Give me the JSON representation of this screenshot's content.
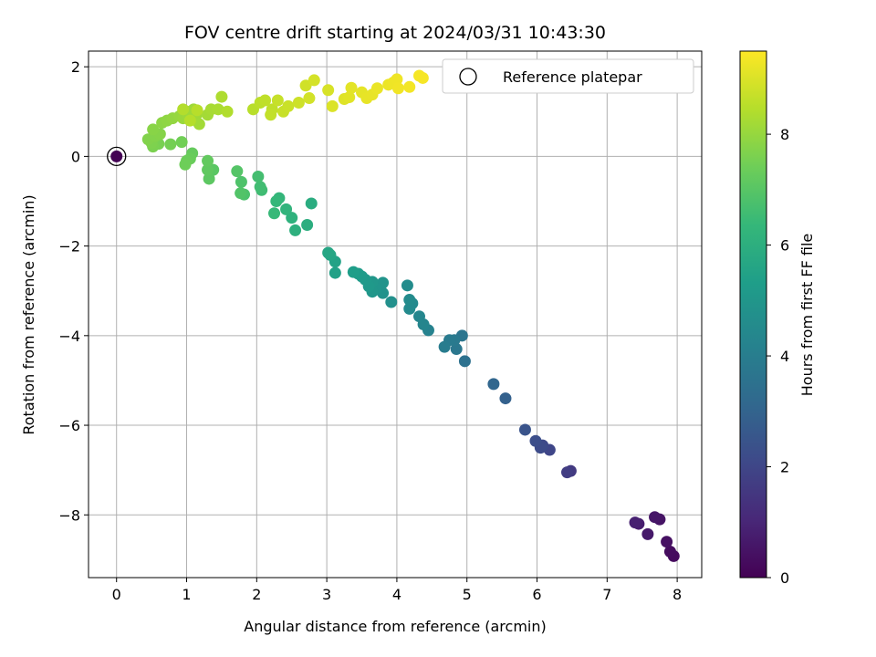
{
  "chart_data": {
    "type": "scatter",
    "title": "FOV centre drift starting at 2024/03/31 10:43:30",
    "xlabel": "Angular distance from reference (arcmin)",
    "ylabel": "Rotation from reference (arcmin)",
    "xlim": [
      -0.4,
      8.35
    ],
    "ylim": [
      -9.4,
      2.35
    ],
    "xticks": [
      0,
      1,
      2,
      3,
      4,
      5,
      6,
      7,
      8
    ],
    "yticks": [
      -8,
      -6,
      -4,
      -2,
      0,
      2
    ],
    "grid": true,
    "legend": {
      "position": "top-right",
      "entries": [
        "Reference platepar"
      ]
    },
    "colorbar": {
      "label": "Hours from first FF file",
      "range": [
        0,
        9.5
      ],
      "ticks": [
        0,
        2,
        4,
        6,
        8
      ],
      "colormap": "viridis"
    },
    "reference_point": {
      "x": 0,
      "y": 0
    },
    "points": [
      [
        0,
        0,
        0
      ],
      [
        7.95,
        -8.92,
        0.25
      ],
      [
        7.9,
        -8.82,
        0.3
      ],
      [
        7.85,
        -8.6,
        0.4
      ],
      [
        7.75,
        -8.1,
        0.5
      ],
      [
        7.68,
        -8.05,
        0.55
      ],
      [
        7.58,
        -8.43,
        0.65
      ],
      [
        7.45,
        -8.2,
        0.75
      ],
      [
        7.4,
        -8.17,
        0.85
      ],
      [
        6.48,
        -7.02,
        1.6
      ],
      [
        6.43,
        -7.05,
        1.7
      ],
      [
        6.18,
        -6.55,
        2.0
      ],
      [
        6.08,
        -6.45,
        2.1
      ],
      [
        6.05,
        -6.5,
        2.15
      ],
      [
        5.98,
        -6.35,
        2.25
      ],
      [
        5.83,
        -6.1,
        2.45
      ],
      [
        5.55,
        -5.4,
        2.9
      ],
      [
        5.38,
        -5.08,
        3.1
      ],
      [
        4.97,
        -4.57,
        3.5
      ],
      [
        4.93,
        -4.0,
        3.65
      ],
      [
        4.85,
        -4.3,
        3.75
      ],
      [
        4.82,
        -4.1,
        3.8
      ],
      [
        4.75,
        -4.1,
        3.85
      ],
      [
        4.68,
        -4.25,
        3.95
      ],
      [
        4.45,
        -3.88,
        4.2
      ],
      [
        4.38,
        -3.75,
        4.3
      ],
      [
        4.32,
        -3.57,
        4.35
      ],
      [
        4.22,
        -3.28,
        4.45
      ],
      [
        4.18,
        -3.4,
        4.5
      ],
      [
        4.18,
        -3.2,
        4.55
      ],
      [
        4.15,
        -2.88,
        4.6
      ],
      [
        3.92,
        -3.25,
        4.75
      ],
      [
        3.8,
        -3.05,
        4.85
      ],
      [
        3.8,
        -2.82,
        4.9
      ],
      [
        3.7,
        -2.95,
        4.95
      ],
      [
        3.65,
        -3.02,
        5.0
      ],
      [
        3.65,
        -2.8,
        5.05
      ],
      [
        3.6,
        -2.9,
        5.1
      ],
      [
        3.55,
        -2.75,
        5.15
      ],
      [
        3.5,
        -2.68,
        5.2
      ],
      [
        3.45,
        -2.62,
        5.25
      ],
      [
        3.38,
        -2.58,
        5.3
      ],
      [
        3.12,
        -2.6,
        5.45
      ],
      [
        3.12,
        -2.35,
        5.5
      ],
      [
        3.05,
        -2.2,
        5.6
      ],
      [
        3.02,
        -2.15,
        5.65
      ],
      [
        2.78,
        -1.05,
        5.9
      ],
      [
        2.72,
        -1.53,
        5.95
      ],
      [
        2.55,
        -1.65,
        6.05
      ],
      [
        2.5,
        -1.37,
        6.1
      ],
      [
        2.42,
        -1.18,
        6.2
      ],
      [
        2.32,
        -0.93,
        6.3
      ],
      [
        2.28,
        -1.0,
        6.35
      ],
      [
        2.25,
        -1.27,
        6.4
      ],
      [
        2.07,
        -0.75,
        6.55
      ],
      [
        2.05,
        -0.68,
        6.6
      ],
      [
        2.02,
        -0.45,
        6.65
      ],
      [
        1.82,
        -0.85,
        6.8
      ],
      [
        1.78,
        -0.57,
        6.85
      ],
      [
        1.77,
        -0.82,
        6.9
      ],
      [
        1.72,
        -0.33,
        6.95
      ],
      [
        1.38,
        -0.3,
        7.05
      ],
      [
        1.32,
        -0.5,
        7.1
      ],
      [
        1.3,
        -0.3,
        7.15
      ],
      [
        1.3,
        -0.1,
        7.2
      ],
      [
        1.08,
        0.07,
        7.25
      ],
      [
        1.05,
        -0.05,
        7.3
      ],
      [
        1.0,
        -0.1,
        7.35
      ],
      [
        0.98,
        -0.18,
        7.4
      ],
      [
        0.93,
        0.32,
        7.45
      ],
      [
        0.77,
        0.27,
        7.5
      ],
      [
        0.6,
        0.28,
        7.55
      ],
      [
        0.52,
        0.22,
        7.6
      ],
      [
        0.5,
        0.3,
        7.65
      ],
      [
        0.45,
        0.38,
        7.7
      ],
      [
        0.55,
        0.45,
        7.72
      ],
      [
        0.62,
        0.5,
        7.75
      ],
      [
        0.52,
        0.6,
        7.8
      ],
      [
        0.65,
        0.75,
        7.85
      ],
      [
        0.72,
        0.8,
        7.9
      ],
      [
        0.8,
        0.85,
        7.95
      ],
      [
        0.9,
        0.9,
        8.0
      ],
      [
        0.95,
        0.85,
        8.05
      ],
      [
        1.02,
        0.9,
        8.08
      ],
      [
        1.05,
        1.0,
        8.1
      ],
      [
        1.1,
        1.05,
        8.12
      ],
      [
        1.15,
        0.95,
        8.15
      ],
      [
        1.18,
        0.72,
        8.18
      ],
      [
        1.3,
        0.93,
        8.2
      ],
      [
        1.35,
        1.05,
        8.25
      ],
      [
        1.45,
        1.05,
        8.3
      ],
      [
        1.5,
        1.33,
        8.35
      ],
      [
        1.58,
        1.0,
        8.4
      ],
      [
        0.95,
        1.05,
        8.42
      ],
      [
        1.05,
        0.8,
        8.45
      ],
      [
        1.15,
        1.03,
        8.48
      ],
      [
        1.95,
        1.05,
        8.5
      ],
      [
        2.05,
        1.2,
        8.55
      ],
      [
        2.12,
        1.25,
        8.6
      ],
      [
        2.22,
        1.05,
        8.62
      ],
      [
        2.2,
        0.93,
        8.65
      ],
      [
        2.3,
        1.25,
        8.7
      ],
      [
        2.38,
        1.0,
        8.72
      ],
      [
        2.45,
        1.12,
        8.75
      ],
      [
        2.6,
        1.2,
        8.8
      ],
      [
        2.7,
        1.58,
        8.85
      ],
      [
        2.75,
        1.3,
        8.88
      ],
      [
        2.82,
        1.7,
        8.9
      ],
      [
        3.02,
        1.48,
        8.95
      ],
      [
        3.08,
        1.12,
        9.0
      ],
      [
        3.25,
        1.28,
        9.05
      ],
      [
        3.32,
        1.32,
        9.1
      ],
      [
        3.35,
        1.53,
        9.12
      ],
      [
        3.5,
        1.43,
        9.15
      ],
      [
        3.57,
        1.3,
        9.18
      ],
      [
        3.65,
        1.38,
        9.2
      ],
      [
        3.72,
        1.52,
        9.22
      ],
      [
        3.88,
        1.6,
        9.25
      ],
      [
        3.95,
        1.65,
        9.28
      ],
      [
        4.0,
        1.72,
        9.3
      ],
      [
        4.02,
        1.52,
        9.32
      ],
      [
        4.18,
        1.55,
        9.35
      ],
      [
        4.32,
        1.8,
        9.38
      ],
      [
        4.37,
        1.75,
        9.4
      ]
    ]
  }
}
